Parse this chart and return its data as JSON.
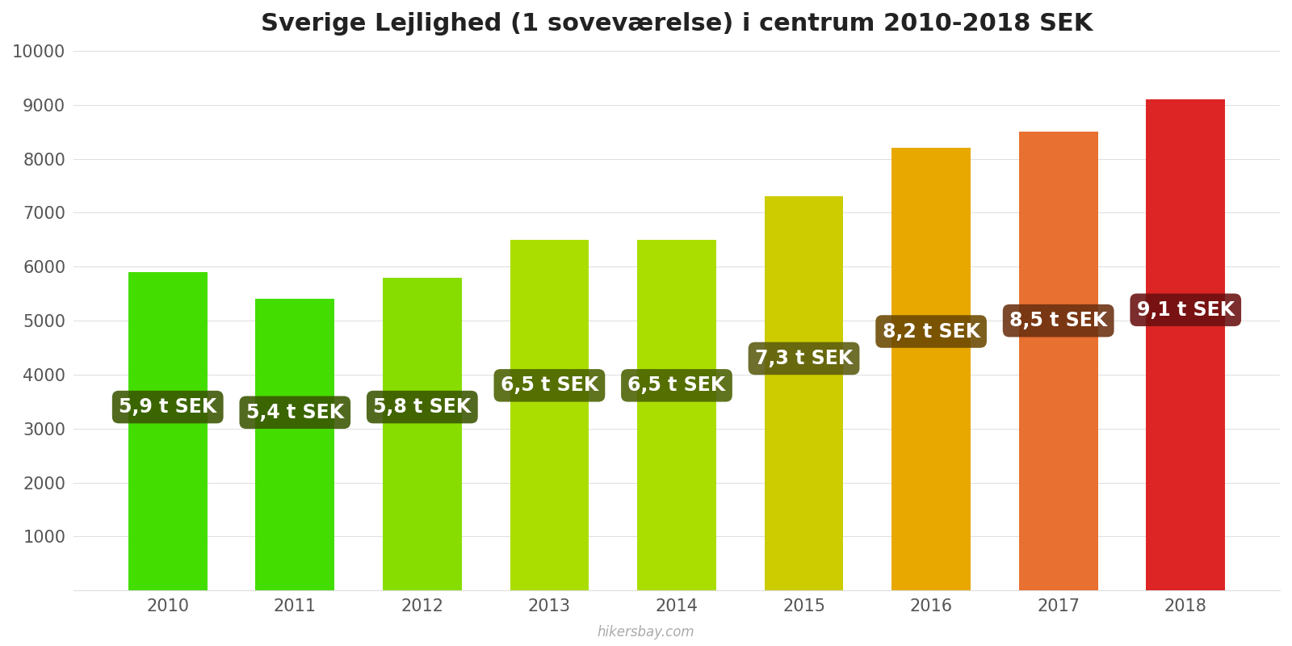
{
  "title": "Sverige Lejlighed (1 soveværelse) i centrum 2010-2018 SEK",
  "years": [
    2010,
    2011,
    2012,
    2013,
    2014,
    2015,
    2016,
    2017,
    2018
  ],
  "values": [
    5900,
    5400,
    5800,
    6500,
    6500,
    7300,
    8200,
    8500,
    9100
  ],
  "labels": [
    "5,9 t SEK",
    "5,4 t SEK",
    "5,8 t SEK",
    "6,5 t SEK",
    "6,5 t SEK",
    "7,3 t SEK",
    "8,2 t SEK",
    "8,5 t SEK",
    "9,1 t SEK"
  ],
  "bar_colors": [
    "#44DD00",
    "#44DD00",
    "#88DD00",
    "#AADD00",
    "#AADD00",
    "#CCCC00",
    "#E8A800",
    "#E87030",
    "#DD2525"
  ],
  "label_bg_colors": [
    "#3A5500",
    "#3A5500",
    "#3A5500",
    "#4A6000",
    "#4A6000",
    "#5A5A10",
    "#6A4800",
    "#6A3010",
    "#6A1010"
  ],
  "label_y_values": [
    3400,
    3300,
    3400,
    3800,
    3800,
    4300,
    4800,
    5000,
    5200
  ],
  "ylim": [
    0,
    10000
  ],
  "yticks": [
    0,
    1000,
    2000,
    3000,
    4000,
    5000,
    6000,
    7000,
    8000,
    9000,
    10000
  ],
  "watermark": "hikersbay.com",
  "title_fontsize": 22,
  "label_fontsize": 17,
  "tick_fontsize": 15,
  "background_color": "#ffffff"
}
